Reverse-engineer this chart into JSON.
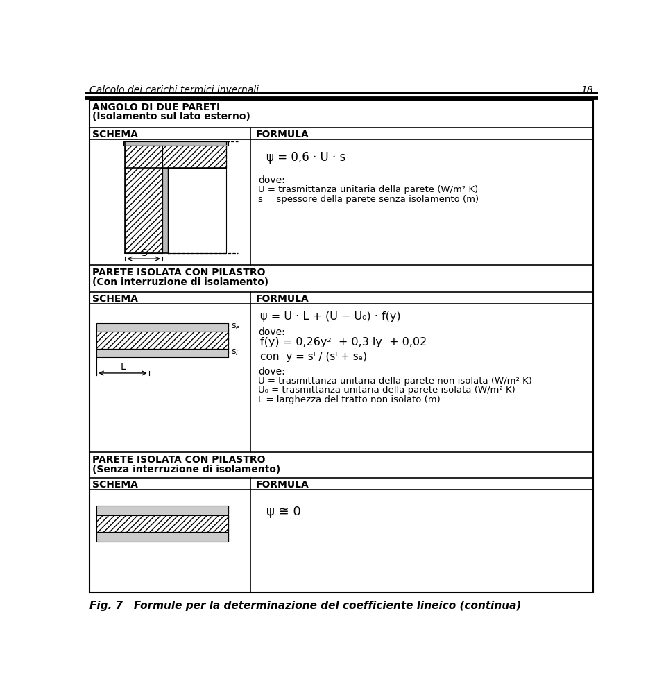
{
  "page_title": "Calcolo dei carichi termici invernali",
  "page_number": "18",
  "footer_text": "Fig. 7   Formule per la determinazione del coefficiente lineico (continua)",
  "section1_title": "ANGOLO DI DUE PARETI",
  "section1_subtitle": "(Isolamento sul lato esterno)",
  "schema_label": "SCHEMA",
  "formula_label": "FORMULA",
  "section1_formula": "ψ = 0,6 · U · s",
  "section1_dove": "dove:",
  "section1_lines": [
    "U = trasmittanza unitaria della parete (W/m² K)",
    "s = spessore della parete senza isolamento (m)"
  ],
  "section2_title": "PARETE ISOLATA CON PILASTRO",
  "section2_subtitle": "(Con interruzione di isolamento)",
  "section2_formula_line1": "ψ = U · L + (U − U₀) · f(y)",
  "section2_dove1": "dove:",
  "section2_formula_line2": "f(y) = 0,26y²  + 0,3 ly  + 0,02",
  "section2_con": "con  y = sᴵ / (sᴵ + sₑ)",
  "section2_dove2": "dove:",
  "section2_lines": [
    "U = trasmittanza unitaria della parete non isolata (W/m² K)",
    "U₀ = trasmittanza unitaria della parete isolata (W/m² K)",
    "L = larghezza del tratto non isolato (m)"
  ],
  "section3_title": "PARETE ISOLATA CON PILASTRO",
  "section3_subtitle": "(Senza interruzione di isolamento)",
  "section3_formula": "ψ ≅ 0",
  "bg_color": "#ffffff",
  "text_color": "#000000"
}
